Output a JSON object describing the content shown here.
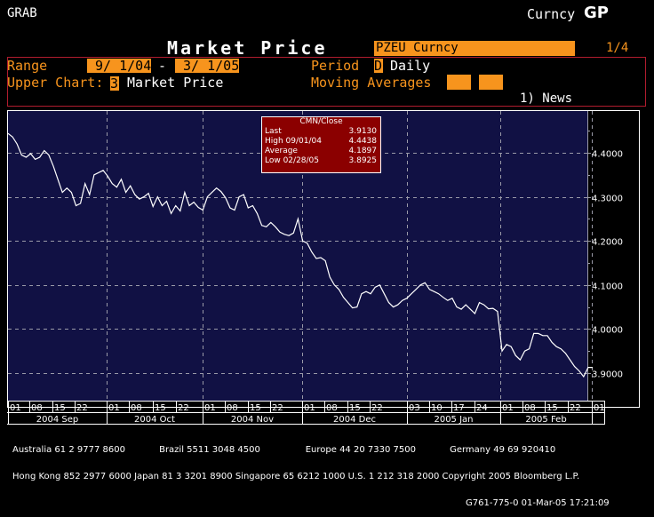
{
  "header": {
    "function": "GRAB",
    "market_sector": "Curncy",
    "function_code": "GP",
    "title": "Market Price",
    "ticker": "PZEU Curncy",
    "page": "1/4"
  },
  "panel": {
    "range_label": "Range",
    "range_start": " 9/ 1/04",
    "range_sep": "-",
    "range_end": " 3/ 1/05",
    "period_label": "Period",
    "period_code": "D",
    "period_value": "Daily",
    "upper_chart_label": "Upper Chart:",
    "upper_chart_code": "3",
    "upper_chart_value": "Market Price",
    "moving_averages_label": "Moving Averages",
    "moving_average_1": "",
    "moving_average_2": "",
    "news_link": "1) News"
  },
  "legend": {
    "title": "CMN/Close",
    "rows": [
      {
        "label": "Last",
        "value": "3.9130"
      },
      {
        "label": "High  09/01/04",
        "value": "4.4438"
      },
      {
        "label": "Average",
        "value": "4.1897"
      },
      {
        "label": "Low  02/28/05",
        "value": "3.8925"
      }
    ]
  },
  "colors": {
    "plot_background": "#111144",
    "line": "#ffffff",
    "accent_orange": "#f7941d",
    "panel_border": "#b01c2e",
    "legend_background": "#8b0000",
    "grid": "#9a9aa8"
  },
  "footer": {
    "line1": "Australia 61 2 9777 8600            Brazil 5511 3048 4500                Europe 44 20 7330 7500            Germany 49 69 920410",
    "line2": "Hong Kong 852 2977 6000 Japan 81 3 3201 8900 Singapore 65 6212 1000 U.S. 1 212 318 2000 Copyright 2005 Bloomberg L.P.",
    "line3": "G761-775-0 01-Mar-05 17:21:09"
  },
  "chart_data": {
    "type": "line",
    "title": "Market Price — PZEU Curncy (CMN/Close)",
    "xlabel": "",
    "ylabel": "",
    "ylim": [
      3.86,
      4.46
    ],
    "yticks": [
      "4.4000",
      "4.3000",
      "4.2000",
      "4.1000",
      "4.0000",
      "3.9000"
    ],
    "grid": true,
    "legend_position": "top-center box",
    "x_day_ticks": [
      "01",
      "08",
      "15",
      "22",
      "01",
      "08",
      "15",
      "22",
      "01",
      "08",
      "15",
      "22",
      "01",
      "08",
      "15",
      "22",
      "03",
      "10",
      "17",
      "24",
      "01",
      "08",
      "15",
      "22",
      "01"
    ],
    "x_month_labels": [
      "2004 Sep",
      "2004 Oct",
      "2004 Nov",
      "2004 Dec",
      "2005 Jan",
      "2005 Feb",
      ""
    ],
    "summary": {
      "last": 3.913,
      "high": 4.4438,
      "high_date": "09/01/04",
      "average": 4.1897,
      "low": 3.8925,
      "low_date": "02/28/05"
    },
    "series": [
      {
        "name": "CMN/Close",
        "x": [
          "2004-09-01",
          "2004-09-02",
          "2004-09-03",
          "2004-09-06",
          "2004-09-07",
          "2004-09-08",
          "2004-09-09",
          "2004-09-10",
          "2004-09-13",
          "2004-09-14",
          "2004-09-15",
          "2004-09-16",
          "2004-09-17",
          "2004-09-20",
          "2004-09-21",
          "2004-09-22",
          "2004-09-23",
          "2004-09-24",
          "2004-09-27",
          "2004-09-28",
          "2004-09-29",
          "2004-09-30",
          "2004-10-01",
          "2004-10-04",
          "2004-10-05",
          "2004-10-06",
          "2004-10-07",
          "2004-10-08",
          "2004-10-11",
          "2004-10-12",
          "2004-10-13",
          "2004-10-14",
          "2004-10-15",
          "2004-10-18",
          "2004-10-19",
          "2004-10-20",
          "2004-10-21",
          "2004-10-22",
          "2004-10-25",
          "2004-10-26",
          "2004-10-27",
          "2004-10-28",
          "2004-10-29",
          "2004-11-01",
          "2004-11-02",
          "2004-11-03",
          "2004-11-04",
          "2004-11-05",
          "2004-11-08",
          "2004-11-09",
          "2004-11-10",
          "2004-11-11",
          "2004-11-12",
          "2004-11-15",
          "2004-11-16",
          "2004-11-17",
          "2004-11-18",
          "2004-11-19",
          "2004-11-22",
          "2004-11-23",
          "2004-11-24",
          "2004-11-25",
          "2004-11-26",
          "2004-11-29",
          "2004-11-30",
          "2004-12-01",
          "2004-12-02",
          "2004-12-03",
          "2004-12-06",
          "2004-12-07",
          "2004-12-08",
          "2004-12-09",
          "2004-12-10",
          "2004-12-13",
          "2004-12-14",
          "2004-12-15",
          "2004-12-16",
          "2004-12-17",
          "2004-12-20",
          "2004-12-21",
          "2004-12-22",
          "2004-12-23",
          "2004-12-24",
          "2004-12-27",
          "2004-12-28",
          "2004-12-29",
          "2004-12-30",
          "2004-12-31",
          "2005-01-03",
          "2005-01-04",
          "2005-01-05",
          "2005-01-06",
          "2005-01-07",
          "2005-01-10",
          "2005-01-11",
          "2005-01-12",
          "2005-01-13",
          "2005-01-14",
          "2005-01-17",
          "2005-01-18",
          "2005-01-19",
          "2005-01-20",
          "2005-01-21",
          "2005-01-24",
          "2005-01-25",
          "2005-01-26",
          "2005-01-27",
          "2005-01-28",
          "2005-01-31",
          "2005-02-01",
          "2005-02-02",
          "2005-02-03",
          "2005-02-04",
          "2005-02-07",
          "2005-02-08",
          "2005-02-09",
          "2005-02-10",
          "2005-02-11",
          "2005-02-14",
          "2005-02-15",
          "2005-02-16",
          "2005-02-17",
          "2005-02-18",
          "2005-02-21",
          "2005-02-22",
          "2005-02-23",
          "2005-02-24",
          "2005-02-25",
          "2005-02-28",
          "2005-03-01"
        ],
        "values": [
          4.444,
          4.436,
          4.42,
          4.395,
          4.39,
          4.398,
          4.385,
          4.39,
          4.405,
          4.395,
          4.37,
          4.34,
          4.31,
          4.32,
          4.31,
          4.28,
          4.285,
          4.33,
          4.305,
          4.35,
          4.355,
          4.36,
          4.347,
          4.33,
          4.322,
          4.34,
          4.31,
          4.325,
          4.305,
          4.295,
          4.3,
          4.308,
          4.278,
          4.3,
          4.28,
          4.29,
          4.262,
          4.28,
          4.268,
          4.31,
          4.28,
          4.288,
          4.276,
          4.27,
          4.3,
          4.31,
          4.32,
          4.312,
          4.298,
          4.275,
          4.27,
          4.3,
          4.305,
          4.275,
          4.28,
          4.262,
          4.235,
          4.232,
          4.242,
          4.232,
          4.22,
          4.215,
          4.212,
          4.218,
          4.25,
          4.2,
          4.195,
          4.175,
          4.16,
          4.162,
          4.155,
          4.118,
          4.1,
          4.09,
          4.072,
          4.06,
          4.048,
          4.05,
          4.08,
          4.085,
          4.08,
          4.095,
          4.1,
          4.08,
          4.06,
          4.05,
          4.055,
          4.065,
          4.07,
          4.08,
          4.09,
          4.1,
          4.105,
          4.09,
          4.085,
          4.08,
          4.072,
          4.065,
          4.07,
          4.05,
          4.045,
          4.055,
          4.045,
          4.035,
          4.06,
          4.055,
          4.046,
          4.047,
          4.04,
          3.95,
          3.965,
          3.96,
          3.94,
          3.93,
          3.95,
          3.955,
          3.99,
          3.99,
          3.985,
          3.985,
          3.97,
          3.96,
          3.955,
          3.945,
          3.93,
          3.915,
          3.905,
          3.892,
          3.913,
          3.913
        ]
      }
    ]
  }
}
